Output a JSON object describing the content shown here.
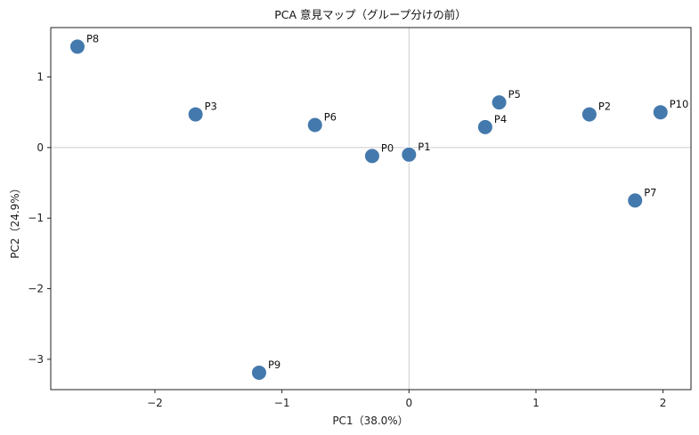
{
  "chart_data": {
    "type": "scatter",
    "title": "PCA 意見マップ（グループ分けの前）",
    "xlabel": "PC1（38.0%）",
    "ylabel": "PC2（24.9%）",
    "xlim": [
      -2.82,
      2.22
    ],
    "ylim": [
      -3.43,
      1.7
    ],
    "xticks": [
      -2,
      -1,
      0,
      1,
      2
    ],
    "yticks": [
      -3,
      -2,
      -1,
      0,
      1
    ],
    "xtick_labels": [
      "−2",
      "−1",
      "0",
      "1",
      "2"
    ],
    "ytick_labels": [
      "−3",
      "−2",
      "−1",
      "0",
      "1"
    ],
    "reference_lines": {
      "x": 0,
      "y": 0
    },
    "point_color": "#4479ad",
    "points": [
      {
        "label": "P0",
        "x": -0.29,
        "y": -0.12
      },
      {
        "label": "P1",
        "x": 0.0,
        "y": -0.1
      },
      {
        "label": "P2",
        "x": 1.42,
        "y": 0.47
      },
      {
        "label": "P3",
        "x": -1.68,
        "y": 0.47
      },
      {
        "label": "P4",
        "x": 0.6,
        "y": 0.29
      },
      {
        "label": "P5",
        "x": 0.71,
        "y": 0.64
      },
      {
        "label": "P6",
        "x": -0.74,
        "y": 0.32
      },
      {
        "label": "P7",
        "x": 1.78,
        "y": -0.75
      },
      {
        "label": "P8",
        "x": -2.61,
        "y": 1.43
      },
      {
        "label": "P9",
        "x": -1.18,
        "y": -3.19
      },
      {
        "label": "P10",
        "x": 1.98,
        "y": 0.5
      }
    ]
  }
}
